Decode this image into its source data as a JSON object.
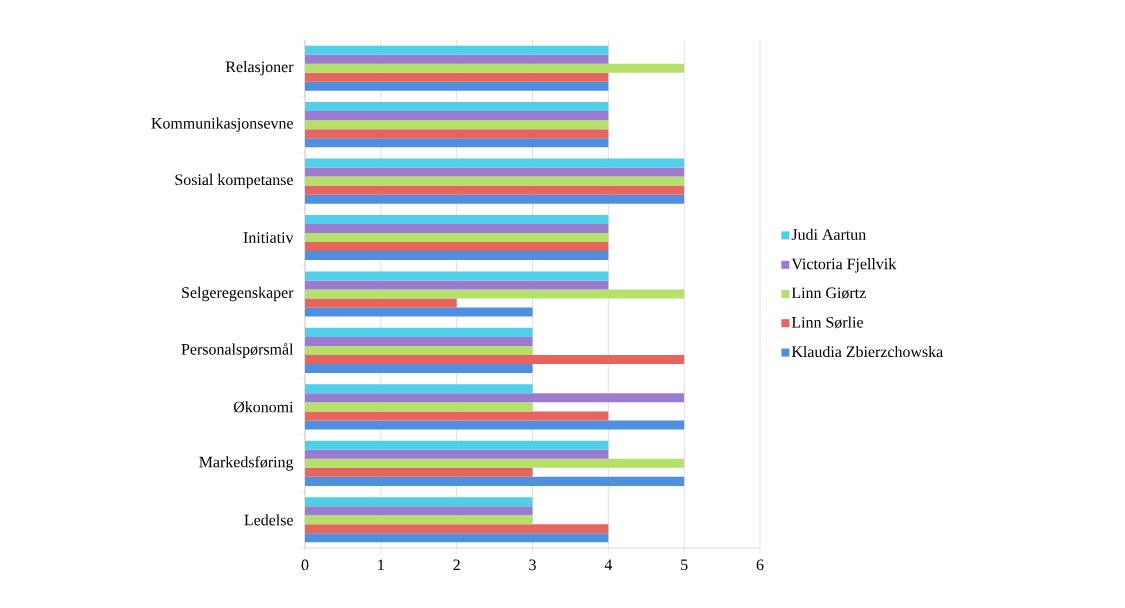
{
  "chart_data": {
    "type": "bar",
    "orientation": "horizontal",
    "categories": [
      "Relasjoner",
      "Kommunikasjonsevne",
      "Sosial kompetanse",
      "Initiativ",
      "Selgeregenskaper",
      "Personalspørsmål",
      "Økonomi",
      "Markedsføring",
      "Ledelse"
    ],
    "series": [
      {
        "name": "Klaudia Zbierzchowska",
        "color": "#4f8fe0",
        "values": [
          4,
          4,
          5,
          4,
          3,
          3,
          5,
          5,
          4
        ]
      },
      {
        "name": "Linn Sørlie",
        "color": "#e8655f",
        "values": [
          4,
          4,
          5,
          4,
          2,
          5,
          4,
          3,
          4
        ]
      },
      {
        "name": "Linn Giørtz",
        "color": "#b5e06a",
        "values": [
          5,
          4,
          5,
          4,
          5,
          3,
          3,
          5,
          3
        ]
      },
      {
        "name": "Victoria Fjellvik",
        "color": "#9b7bd0",
        "values": [
          4,
          4,
          5,
          4,
          4,
          3,
          5,
          4,
          3
        ]
      },
      {
        "name": "Judi Aartun",
        "color": "#4fd0e8",
        "values": [
          4,
          4,
          5,
          4,
          4,
          3,
          3,
          4,
          3
        ]
      }
    ],
    "xlim": [
      0,
      6
    ],
    "xticks": [
      0,
      1,
      2,
      3,
      4,
      5,
      6
    ],
    "grid": "x",
    "legend": "right"
  }
}
